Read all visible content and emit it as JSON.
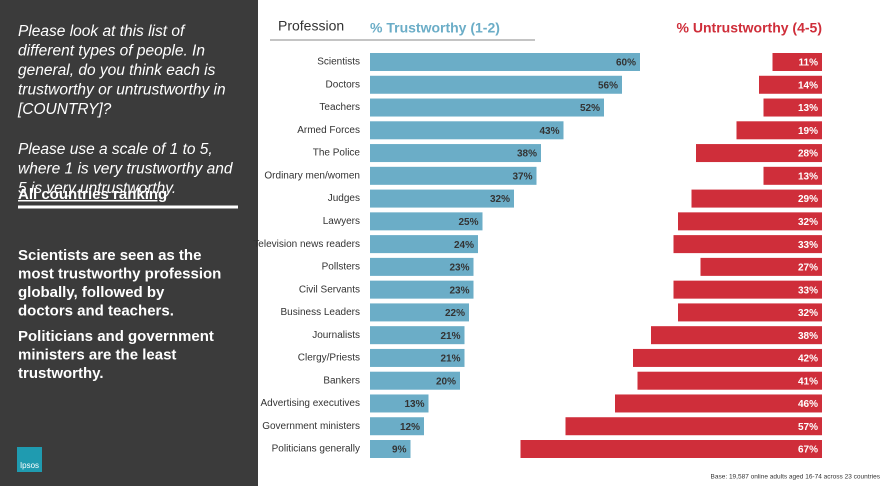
{
  "panel": {
    "question": [
      "Please look at this list of",
      "different types of people. In",
      "general, do you think each is",
      "trustworthy or untrustworthy in",
      "[COUNTRY]?"
    ],
    "scale": [
      "Please use a scale of 1 to 5,",
      "where 1 is very trustworthy and",
      "5 is very untrustworthy."
    ],
    "heading": "All countries ranking",
    "finding1": [
      "Scientists are seen as the",
      "most trustworthy profession",
      "globally, followed by",
      "doctors and teachers."
    ],
    "finding2": [
      "Politicians and government",
      "ministers are the least",
      "trustworthy."
    ],
    "logo": "Ipsos"
  },
  "chart_data": {
    "type": "bar",
    "orientation": "horizontal",
    "category_header": "Profession",
    "categories": [
      "Scientists",
      "Doctors",
      "Teachers",
      "Armed Forces",
      "The Police",
      "Ordinary men/women",
      "Judges",
      "Lawyers",
      "Television news readers",
      "Pollsters",
      "Civil Servants",
      "Business Leaders",
      "Journalists",
      "Clergy/Priests",
      "Bankers",
      "Advertising executives",
      "Government ministers",
      "Politicians generally"
    ],
    "series": [
      {
        "name": "% Trustworthy (1-2)",
        "color": "#6badc7",
        "values": [
          60,
          56,
          52,
          43,
          38,
          37,
          32,
          25,
          24,
          23,
          23,
          22,
          21,
          21,
          20,
          13,
          12,
          9
        ],
        "value_labels": [
          "60%",
          "56%",
          "52%",
          "43%",
          "38%",
          "37%",
          "32%",
          "25%",
          "24%",
          "23%",
          "23%",
          "22%",
          "21%",
          "21%",
          "20%",
          "13%",
          "12%",
          "9%"
        ]
      },
      {
        "name": "% Untrustworthy (4-5)",
        "color": "#cf2e3a",
        "values": [
          11,
          14,
          13,
          19,
          28,
          13,
          29,
          32,
          33,
          27,
          33,
          32,
          38,
          42,
          41,
          46,
          57,
          67
        ],
        "value_labels": [
          "11%",
          "14%",
          "13%",
          "19%",
          "28%",
          "13%",
          "29%",
          "32%",
          "33%",
          "27%",
          "33%",
          "32%",
          "38%",
          "42%",
          "41%",
          "46%",
          "57%",
          "67%"
        ]
      }
    ],
    "footnote": "Base: 19,587 online adults aged 16-74 across 23 countries"
  }
}
